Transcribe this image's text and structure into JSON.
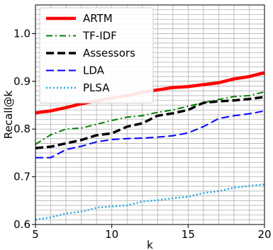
{
  "chart_data": {
    "type": "line",
    "xlabel": "k",
    "ylabel": "Recall@k",
    "xlim": [
      5,
      20
    ],
    "ylim": [
      0.6,
      1.06
    ],
    "xticks": [
      5,
      10,
      15,
      20
    ],
    "yticks": [
      0.6,
      0.7,
      0.8,
      0.9,
      1.0
    ],
    "xtick_labels": [
      "5",
      "10",
      "15",
      "20"
    ],
    "ytick_labels": [
      "0.6",
      "0.7",
      "0.8",
      "0.9",
      "1.0"
    ],
    "grid": true,
    "minor_grid": true,
    "legend_position": "top-left",
    "x": [
      5,
      6,
      7,
      8,
      9,
      10,
      11,
      12,
      13,
      14,
      15,
      16,
      17,
      18,
      19,
      20
    ],
    "series": [
      {
        "name": "ARTM",
        "color": "#ff0000",
        "style": "solid",
        "values": [
          0.834,
          0.838,
          0.845,
          0.853,
          0.859,
          0.865,
          0.87,
          0.877,
          0.882,
          0.887,
          0.889,
          0.893,
          0.897,
          0.905,
          0.91,
          0.918
        ]
      },
      {
        "name": "TF-IDF",
        "color": "#008000",
        "style": "dashdot",
        "values": [
          0.768,
          0.788,
          0.8,
          0.802,
          0.81,
          0.818,
          0.825,
          0.828,
          0.835,
          0.84,
          0.848,
          0.855,
          0.862,
          0.868,
          0.87,
          0.878
        ]
      },
      {
        "name": "Assessors",
        "color": "#000000",
        "style": "dashed",
        "values": [
          0.76,
          0.763,
          0.77,
          0.777,
          0.787,
          0.791,
          0.805,
          0.812,
          0.828,
          0.833,
          0.84,
          0.855,
          0.858,
          0.86,
          0.863,
          0.867
        ]
      },
      {
        "name": "LDA",
        "color": "#0000ff",
        "style": "dashed",
        "values": [
          0.74,
          0.74,
          0.757,
          0.764,
          0.773,
          0.778,
          0.78,
          0.781,
          0.783,
          0.786,
          0.792,
          0.805,
          0.822,
          0.828,
          0.832,
          0.838
        ]
      },
      {
        "name": "PLSA",
        "color": "#1fa8e0",
        "style": "dotted",
        "values": [
          0.61,
          0.615,
          0.623,
          0.627,
          0.635,
          0.638,
          0.64,
          0.648,
          0.651,
          0.655,
          0.658,
          0.666,
          0.67,
          0.677,
          0.681,
          0.684
        ]
      }
    ]
  }
}
